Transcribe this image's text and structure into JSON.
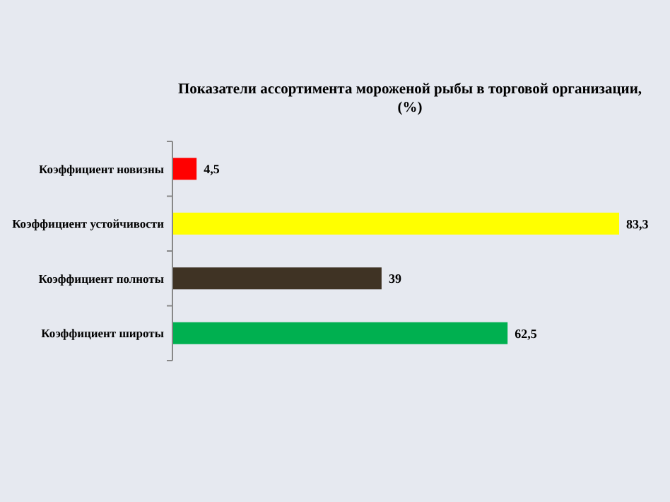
{
  "chart_data": {
    "type": "bar",
    "orientation": "horizontal",
    "title": "Показатели ассортимента мороженой рыбы в торговой организации, (%)",
    "categories": [
      "Коэффициент новизны",
      "Коэффициент устойчивости",
      "Коэффициент полноты",
      "Коэффициент широты"
    ],
    "values": [
      4.5,
      83.3,
      39,
      62.5
    ],
    "colors": [
      "#ff0000",
      "#ffff00",
      "#3f3324",
      "#00b050"
    ],
    "value_labels": [
      "4,5",
      "83,3",
      "39",
      "62,5"
    ]
  }
}
